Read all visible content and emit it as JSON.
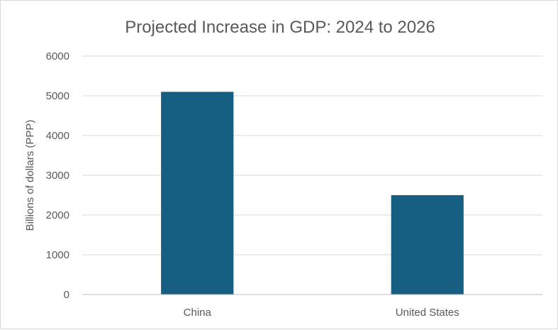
{
  "chart_data": {
    "type": "bar",
    "title": "Projected Increase in GDP: 2024 to 2026",
    "xlabel": "",
    "ylabel": "Billions of dollars (PPP)",
    "categories": [
      "China",
      "United States"
    ],
    "values": [
      5100,
      2500
    ],
    "ylim": [
      0,
      6000
    ],
    "yticks": [
      "0",
      "1000",
      "2000",
      "3000",
      "4000",
      "5000",
      "6000"
    ],
    "grid": true,
    "legend": "none",
    "bar_color": "#175f82"
  }
}
